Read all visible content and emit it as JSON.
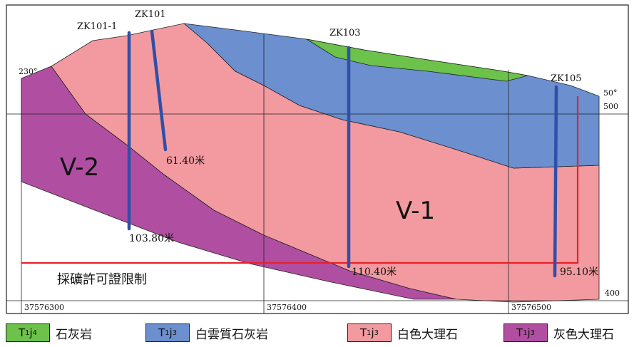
{
  "section": {
    "boreholes": [
      {
        "name": "ZK101-1",
        "depth": "103.80米"
      },
      {
        "name": "ZK101",
        "depth": "61.40米"
      },
      {
        "name": "ZK103",
        "depth": "110.40米"
      },
      {
        "name": "ZK105",
        "depth": "95.10米"
      }
    ],
    "orebodies": [
      "V-2",
      "V-1"
    ],
    "azimuth_left": "230°",
    "azimuth_right": "50°",
    "elevations": [
      "500",
      "400"
    ],
    "coordinates": [
      "37576300",
      "37576400",
      "37576500"
    ],
    "permit_label": "採礦許可證限制"
  },
  "legend": [
    {
      "symbol": "T",
      "sub": "1",
      "mid": "j",
      "sup": "4",
      "label": "石灰岩",
      "color": "#6cc24a"
    },
    {
      "symbol": "T",
      "sub": "1",
      "mid": "j",
      "sup": "3",
      "label": "白雲質石灰岩",
      "color": "#6b8fcf"
    },
    {
      "symbol": "T",
      "sub": "1",
      "mid": "j",
      "sup": "3",
      "label": "白色大理石",
      "color": "#f29aa0"
    },
    {
      "symbol": "T",
      "sub": "1",
      "mid": "j",
      "sup": "3",
      "label": "灰色大理石",
      "color": "#b04fa2"
    }
  ],
  "colors": {
    "limestone": "#6cc24a",
    "dolomitic_limestone": "#6b8fcf",
    "white_marble": "#f29aa0",
    "grey_marble": "#b04fa2",
    "borehole": "#2f4fa8",
    "permit_line": "#e8202a"
  }
}
